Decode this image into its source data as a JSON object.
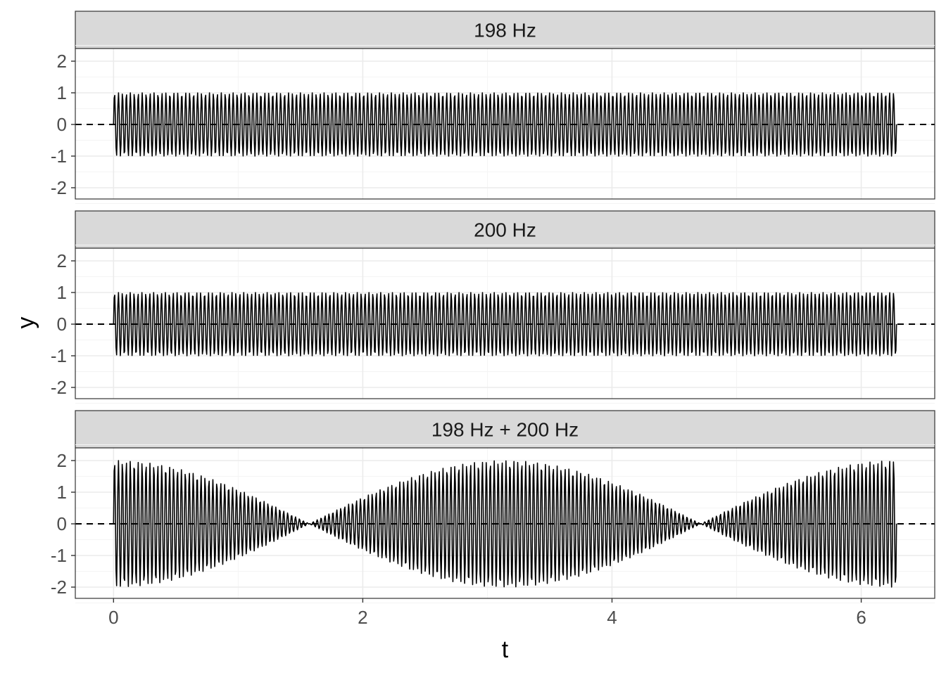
{
  "chart_data": {
    "type": "line",
    "layout": "facets-stacked",
    "xlabel": "t",
    "ylabel": "y",
    "xlim": [
      0,
      6.2832
    ],
    "ylim": [
      -2,
      2
    ],
    "x_ticks": [
      0,
      2,
      4,
      6
    ],
    "y_ticks": [
      -2,
      -1,
      0,
      1,
      2
    ],
    "grid": true,
    "reference_line": {
      "y": 0,
      "style": "dashed"
    },
    "facets": [
      {
        "label": "198 Hz",
        "components": [
          {
            "frequency_hz": 198,
            "amplitude": 1
          }
        ],
        "y_range_shown": [
          -1,
          1
        ]
      },
      {
        "label": "200 Hz",
        "components": [
          {
            "frequency_hz": 200,
            "amplitude": 1
          }
        ],
        "y_range_shown": [
          -1,
          1
        ]
      },
      {
        "label": "198 Hz + 200 Hz",
        "components": [
          {
            "frequency_hz": 198,
            "amplitude": 1
          },
          {
            "frequency_hz": 200,
            "amplitude": 1
          }
        ],
        "y_range_shown": [
          -2,
          2
        ],
        "envelope_nodes_t": [
          1.571,
          4.712
        ]
      }
    ]
  }
}
